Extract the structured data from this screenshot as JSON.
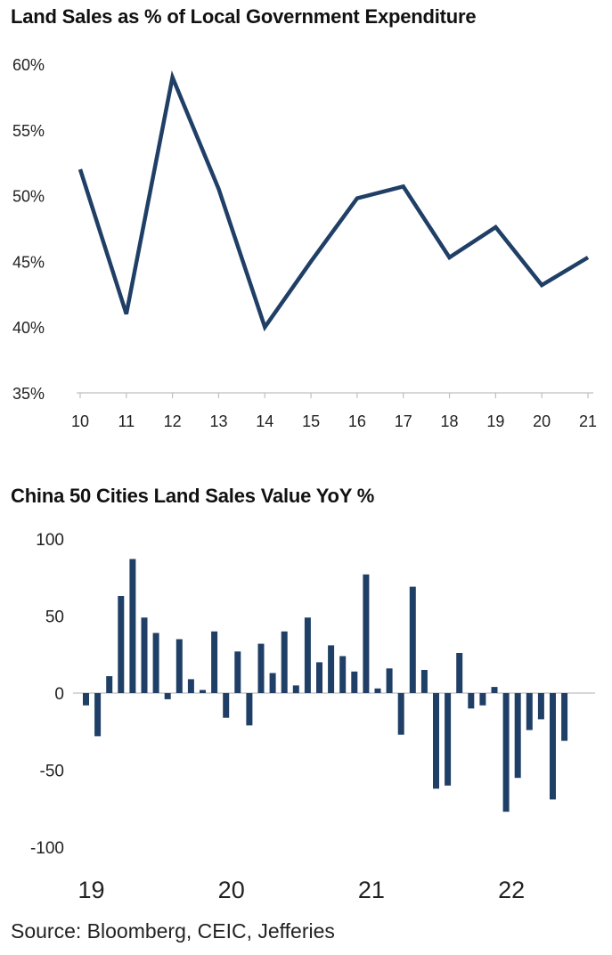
{
  "chart_data": [
    {
      "type": "line",
      "title": "Land Sales as % of Local Government Expenditure",
      "categories": [
        "10",
        "11",
        "12",
        "13",
        "14",
        "15",
        "16",
        "17",
        "18",
        "19",
        "20",
        "21"
      ],
      "values": [
        52.0,
        41.0,
        59.0,
        50.5,
        40.0,
        45.0,
        49.8,
        50.7,
        45.3,
        47.6,
        43.2,
        45.3
      ],
      "ylim": [
        35,
        60
      ],
      "yticks": [
        "60%",
        "55%",
        "50%",
        "45%",
        "40%",
        "35%"
      ],
      "ytick_values": [
        60,
        55,
        50,
        45,
        40,
        35
      ],
      "xlabel": "",
      "ylabel": "",
      "color": "#1f3f66"
    },
    {
      "type": "bar",
      "title": "China 50 Cities Land Sales Value YoY %",
      "values": [
        -8,
        -28,
        11,
        63,
        87,
        49,
        39,
        -4,
        35,
        9,
        2,
        40,
        -16,
        27,
        -21,
        32,
        13,
        40,
        5,
        49,
        20,
        31,
        24,
        14,
        77,
        3,
        16,
        -27,
        69,
        15,
        -62,
        -60,
        26,
        -10,
        -8,
        4,
        -77,
        -55,
        -24,
        -17,
        -69,
        -31
      ],
      "ylim": [
        -100,
        100
      ],
      "yticks": [
        "100",
        "50",
        "0",
        "-50",
        "-100"
      ],
      "ytick_values": [
        100,
        50,
        0,
        -50,
        -100
      ],
      "x_labels": [
        "19",
        "20",
        "21",
        "22"
      ],
      "x_label_month_index": [
        0,
        12,
        24,
        36
      ],
      "xlabel": "",
      "ylabel": "",
      "color": "#1f3f66"
    }
  ],
  "source": "Source: Bloomberg, CEIC, Jefferies"
}
